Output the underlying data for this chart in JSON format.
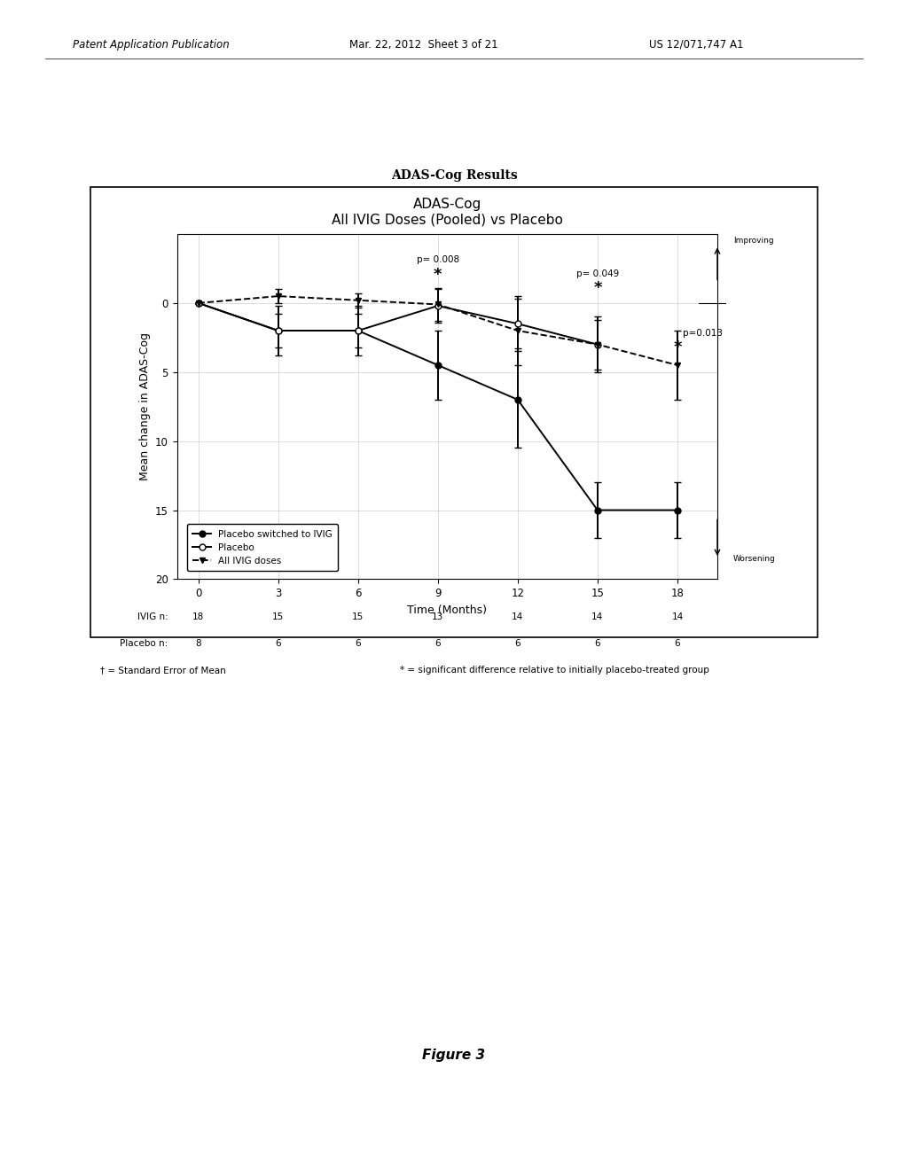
{
  "title_above": "ADAS-Cog Results",
  "chart_title": "ADAS-Cog",
  "chart_subtitle": "All IVIG Doses (Pooled) vs Placebo",
  "xlabel": "Time (Months)",
  "ylabel": "Mean change in ADAS-Cog",
  "time_points": [
    0,
    3,
    6,
    9,
    12,
    15,
    18
  ],
  "placebo_switched_y": [
    0,
    2,
    2,
    4.5,
    7,
    15,
    15
  ],
  "placebo_switched_err": [
    0,
    1.8,
    1.8,
    2.5,
    3.5,
    2.0,
    2.0
  ],
  "placebo_y": [
    0,
    2,
    2,
    0.2,
    1.5,
    3,
    null
  ],
  "placebo_err": [
    0,
    1.2,
    1.2,
    1.2,
    1.8,
    1.8,
    null
  ],
  "all_ivig_y": [
    0,
    -0.5,
    -0.2,
    0.1,
    2,
    3,
    4.5
  ],
  "all_ivig_err": [
    0,
    0.5,
    0.5,
    1.2,
    2.5,
    2.0,
    2.5
  ],
  "ivig_n": [
    18,
    15,
    15,
    13,
    14,
    14,
    14
  ],
  "placebo_n": [
    8,
    6,
    6,
    6,
    6,
    6,
    6
  ],
  "annot_9_text": "p= 0.008",
  "annot_15_text": "p= 0.049",
  "annot_18_text": "p=0.013",
  "ylim_bottom": 20,
  "ylim_top": -5,
  "yticks": [
    0,
    5,
    10,
    15,
    20
  ],
  "xticks": [
    0,
    3,
    6,
    9,
    12,
    15,
    18
  ],
  "bg_color": "#ffffff",
  "grid_color": "#bbbbbb",
  "figure_caption": "Figure 3",
  "header_left": "Patent Application Publication",
  "header_mid": "Mar. 22, 2012  Sheet 3 of 21",
  "header_right": "US 12/071,747 A1",
  "footnote_dagger": "† = Standard Error of Mean",
  "footnote_star": "* = significant difference relative to initially placebo-treated group"
}
